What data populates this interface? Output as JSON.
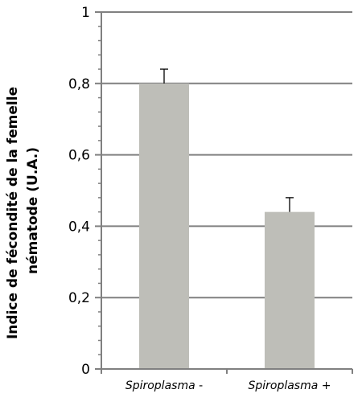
{
  "chart_data": {
    "type": "bar",
    "title": "",
    "xlabel": "",
    "ylabel_lines": [
      "Indice de fécondité de la femelle",
      "nématode (U.A.)"
    ],
    "categories": [
      {
        "name": "Spiroplasma",
        "sign": "-"
      },
      {
        "name": "Spiroplasma",
        "sign": "+"
      }
    ],
    "values": [
      0.8,
      0.44
    ],
    "errors": [
      0.04,
      0.04
    ],
    "ylim": [
      0,
      1
    ],
    "yticks": [
      0,
      0.2,
      0.4,
      0.6,
      0.8,
      1
    ],
    "ytick_labels": [
      "0",
      "0,2",
      "0,4",
      "0,6",
      "0,8",
      "1"
    ],
    "minor_ticks_per_major": 5,
    "grid": true,
    "legend": "none",
    "bar_color": "#bebeb8",
    "grid_color": "#808080",
    "axis_color": "#808080"
  }
}
